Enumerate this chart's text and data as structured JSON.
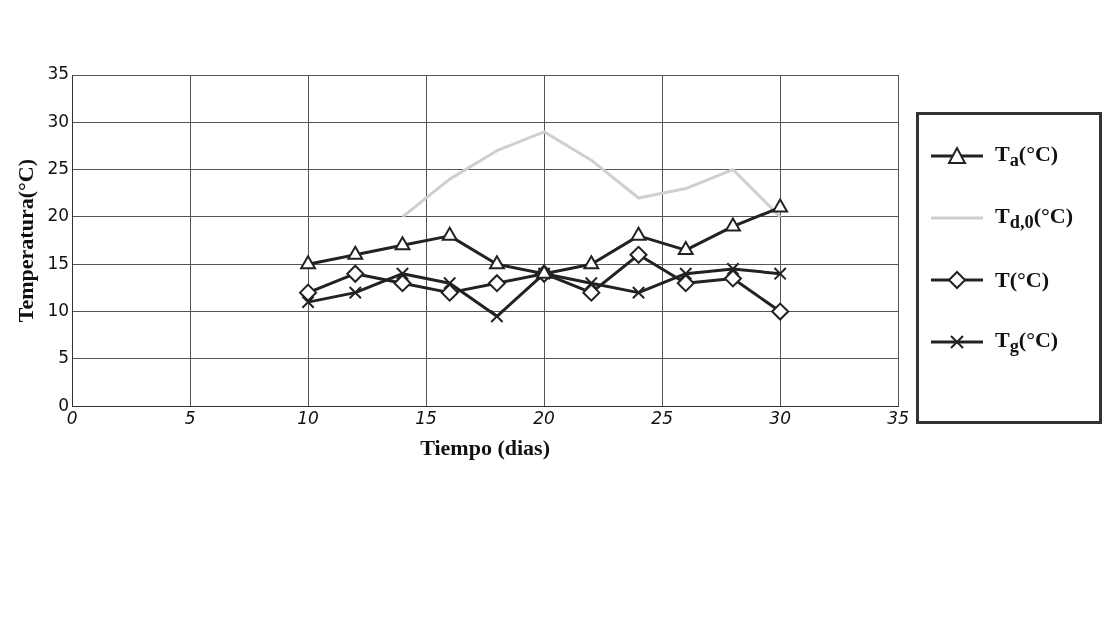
{
  "chart_data": {
    "type": "line",
    "xlabel": "Tiempo (dias)",
    "ylabel": "Temperatura(°C)",
    "xlim": [
      0,
      35
    ],
    "xticks": [
      0,
      5,
      10,
      15,
      20,
      25,
      30,
      35
    ],
    "ylim": [
      0,
      35
    ],
    "yticks": [
      0,
      5,
      10,
      15,
      20,
      25,
      30,
      35
    ],
    "grid": true,
    "legend": "right",
    "line_style": "solid",
    "x": [
      10,
      12,
      14,
      16,
      18,
      20,
      22,
      24,
      26,
      28,
      30
    ],
    "series": [
      {
        "name": "T$_{a}$(°C)",
        "color": "#222222",
        "marker": "triangle",
        "values": [
          15,
          16,
          17,
          18,
          15,
          14,
          15,
          18,
          16.5,
          19,
          21
        ]
      },
      {
        "name": "T$_{d,0}$(°C)",
        "color": "#cfcfcf",
        "marker": "none",
        "values": [
          null,
          null,
          20,
          24,
          27,
          29,
          26,
          22,
          23,
          25,
          20
        ]
      },
      {
        "name": "T(°C)",
        "color": "#222222",
        "marker": "diamond",
        "values": [
          12,
          14,
          13,
          12,
          13,
          14,
          12,
          16,
          13,
          13.5,
          10
        ]
      },
      {
        "name": "T$_{g}$(°C)",
        "color": "#222222",
        "marker": "cross",
        "values": [
          11,
          12,
          14,
          13,
          9.5,
          14,
          13,
          12,
          14,
          14.5,
          14
        ]
      }
    ]
  }
}
